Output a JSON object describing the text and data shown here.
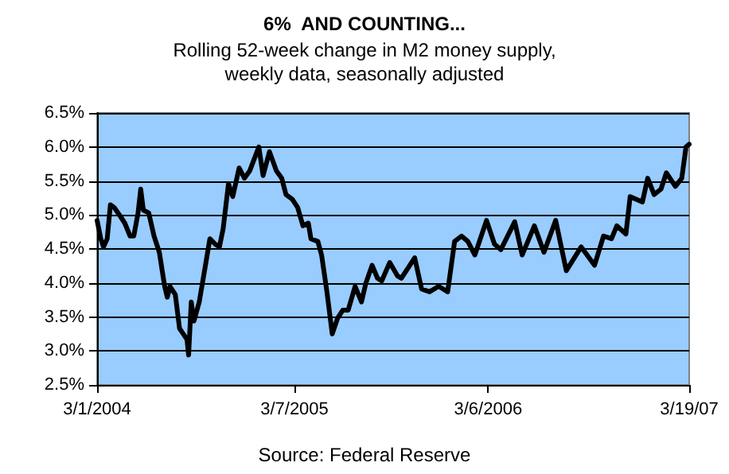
{
  "chart_data": {
    "type": "line",
    "title": "6%  AND COUNTING...",
    "subtitle": "Rolling 52-week change in M2 money supply,\nweekly data, seasonally adjusted",
    "annotations": [
      "Source: Federal Reserve"
    ],
    "x": [
      "2004-03-01",
      "2004-03-08",
      "2004-03-13",
      "2004-03-20",
      "2004-03-26",
      "2004-04-02",
      "2004-04-12",
      "2004-04-22",
      "2004-05-02",
      "2004-05-09",
      "2004-05-17",
      "2004-05-22",
      "2004-05-27",
      "2004-06-06",
      "2004-06-16",
      "2004-06-26",
      "2004-07-06",
      "2004-07-11",
      "2004-07-16",
      "2004-07-26",
      "2004-08-03",
      "2004-08-10",
      "2004-08-17",
      "2004-08-20",
      "2004-08-25",
      "2004-08-30",
      "2004-09-09",
      "2004-09-19",
      "2004-09-29",
      "2004-10-09",
      "2004-10-17",
      "2004-10-24",
      "2004-11-03",
      "2004-11-11",
      "2004-11-23",
      "2004-12-03",
      "2004-12-13",
      "2004-12-30",
      "2005-01-07",
      "2005-01-19",
      "2005-02-01",
      "2005-02-11",
      "2005-02-19",
      "2005-03-03",
      "2005-03-13",
      "2005-03-23",
      "2005-04-02",
      "2005-04-07",
      "2005-04-20",
      "2005-04-27",
      "2005-05-07",
      "2005-05-17",
      "2005-05-27",
      "2005-06-06",
      "2005-06-16",
      "2005-06-29",
      "2005-07-11",
      "2005-07-19",
      "2005-07-31",
      "2005-08-10",
      "2005-08-18",
      "2005-09-02",
      "2005-09-17",
      "2005-09-24",
      "2005-10-19",
      "2005-11-01",
      "2005-11-16",
      "2005-12-03",
      "2005-12-20",
      "2006-01-02",
      "2006-01-15",
      "2006-01-27",
      "2006-02-09",
      "2006-03-03",
      "2006-03-18",
      "2006-03-30",
      "2006-04-25",
      "2006-05-09",
      "2006-06-01",
      "2006-06-19",
      "2006-07-11",
      "2006-07-31",
      "2006-08-28",
      "2006-09-22",
      "2006-10-09",
      "2006-10-24",
      "2006-11-03",
      "2006-11-20",
      "2006-11-28",
      "2006-12-21",
      "2006-12-31",
      "2007-01-12",
      "2007-01-25",
      "2007-02-04",
      "2007-02-21",
      "2007-03-05",
      "2007-03-13",
      "2007-03-19"
    ],
    "series": [
      {
        "color": "#000000",
        "values": [
          4.92,
          4.65,
          4.53,
          4.65,
          5.15,
          5.11,
          5.0,
          4.88,
          4.69,
          4.69,
          5.03,
          5.38,
          5.07,
          5.03,
          4.69,
          4.45,
          3.95,
          3.79,
          3.95,
          3.83,
          3.33,
          3.25,
          3.17,
          2.94,
          3.72,
          3.44,
          3.72,
          4.18,
          4.65,
          4.57,
          4.53,
          4.8,
          5.46,
          5.27,
          5.69,
          5.54,
          5.65,
          6.0,
          5.58,
          5.93,
          5.65,
          5.54,
          5.3,
          5.23,
          5.11,
          4.84,
          4.88,
          4.65,
          4.61,
          4.41,
          3.87,
          3.25,
          3.48,
          3.6,
          3.6,
          3.95,
          3.72,
          3.99,
          4.26,
          4.07,
          4.03,
          4.3,
          4.1,
          4.07,
          4.37,
          3.91,
          3.87,
          3.95,
          3.87,
          4.61,
          4.69,
          4.61,
          4.41,
          4.92,
          4.57,
          4.49,
          4.9,
          4.41,
          4.84,
          4.45,
          4.92,
          4.18,
          4.53,
          4.26,
          4.69,
          4.65,
          4.84,
          4.72,
          5.27,
          5.19,
          5.54,
          5.3,
          5.38,
          5.62,
          5.42,
          5.54,
          6.0,
          6.04
        ]
      }
    ],
    "xlim": [
      "2004-03-01",
      "2007-03-19"
    ],
    "xticks": [
      {
        "value": "2004-03-01",
        "label": "3/1/2004"
      },
      {
        "value": "2005-03-07",
        "label": "3/7/2005"
      },
      {
        "value": "2006-03-06",
        "label": "3/6/2006"
      },
      {
        "value": "2007-03-19",
        "label": "3/19/07"
      }
    ],
    "ylim": [
      2.5,
      6.5
    ],
    "yticks": [
      {
        "value": 2.5,
        "label": "2.5%"
      },
      {
        "value": 3.0,
        "label": "3.0%"
      },
      {
        "value": 3.5,
        "label": "3.5%"
      },
      {
        "value": 4.0,
        "label": "4.0%"
      },
      {
        "value": 4.5,
        "label": "4.5%"
      },
      {
        "value": 5.0,
        "label": "5.0%"
      },
      {
        "value": 5.5,
        "label": "5.5%"
      },
      {
        "value": 6.0,
        "label": "6.0%"
      },
      {
        "value": 6.5,
        "label": "6.5%"
      }
    ],
    "grid": "y",
    "marker": "none",
    "line_style": "solid"
  }
}
